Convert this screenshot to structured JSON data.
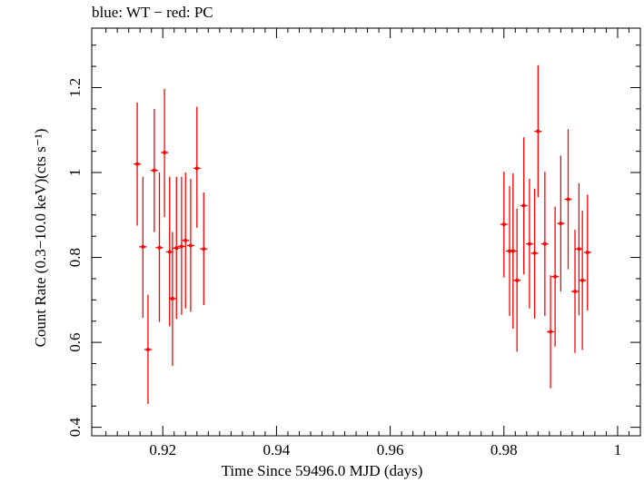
{
  "chart_data": {
    "type": "scatter",
    "title": "blue: WT − red: PC",
    "xlabel": "Time Since 59496.0 MJD (days)",
    "ylabel": "Count Rate (0.3−10.0 keV)(cts s⁻¹)",
    "xlim": [
      0.9075,
      1.004
    ],
    "ylim": [
      0.38,
      1.34
    ],
    "xticks": [
      0.92,
      0.94,
      0.96,
      0.98,
      1.0
    ],
    "xtick_labels": [
      "0.92",
      "0.94",
      "0.96",
      "0.98",
      "1"
    ],
    "yticks": [
      0.4,
      0.6,
      0.8,
      1.0,
      1.2
    ],
    "ytick_labels": [
      "0.4",
      "0.6",
      "0.8",
      "1",
      "1.2"
    ],
    "grid": false,
    "colors": {
      "PC": "#ff0000",
      "axes": "#000000"
    },
    "series": [
      {
        "name": "PC",
        "color": "#ff0000",
        "points": [
          {
            "x": 0.9155,
            "y": 1.02,
            "ylo": 0.875,
            "yhi": 1.165
          },
          {
            "x": 0.9165,
            "y": 0.825,
            "ylo": 0.658,
            "yhi": 0.99
          },
          {
            "x": 0.9174,
            "y": 0.583,
            "ylo": 0.455,
            "yhi": 0.712
          },
          {
            "x": 0.9185,
            "y": 1.005,
            "ylo": 0.86,
            "yhi": 1.15
          },
          {
            "x": 0.9194,
            "y": 0.823,
            "ylo": 0.648,
            "yhi": 1.0
          },
          {
            "x": 0.9203,
            "y": 1.047,
            "ylo": 0.895,
            "yhi": 1.197
          },
          {
            "x": 0.9212,
            "y": 0.813,
            "ylo": 0.638,
            "yhi": 0.99
          },
          {
            "x": 0.9217,
            "y": 0.703,
            "ylo": 0.545,
            "yhi": 0.86
          },
          {
            "x": 0.9224,
            "y": 0.822,
            "ylo": 0.655,
            "yhi": 0.99
          },
          {
            "x": 0.9233,
            "y": 0.826,
            "ylo": 0.665,
            "yhi": 0.99
          },
          {
            "x": 0.924,
            "y": 0.84,
            "ylo": 0.68,
            "yhi": 1.0
          },
          {
            "x": 0.9249,
            "y": 0.828,
            "ylo": 0.672,
            "yhi": 0.985
          },
          {
            "x": 0.926,
            "y": 1.01,
            "ylo": 0.87,
            "yhi": 1.155
          },
          {
            "x": 0.9272,
            "y": 0.82,
            "ylo": 0.688,
            "yhi": 0.953
          },
          {
            "x": 0.98,
            "y": 0.878,
            "ylo": 0.753,
            "yhi": 1.002
          },
          {
            "x": 0.981,
            "y": 0.815,
            "ylo": 0.662,
            "yhi": 0.968
          },
          {
            "x": 0.9816,
            "y": 0.815,
            "ylo": 0.632,
            "yhi": 0.998
          },
          {
            "x": 0.9823,
            "y": 0.746,
            "ylo": 0.578,
            "yhi": 0.915
          },
          {
            "x": 0.9835,
            "y": 0.922,
            "ylo": 0.76,
            "yhi": 1.083
          },
          {
            "x": 0.9845,
            "y": 0.832,
            "ylo": 0.68,
            "yhi": 0.985
          },
          {
            "x": 0.9854,
            "y": 0.81,
            "ylo": 0.656,
            "yhi": 0.962
          },
          {
            "x": 0.986,
            "y": 1.097,
            "ylo": 0.942,
            "yhi": 1.253
          },
          {
            "x": 0.9872,
            "y": 0.832,
            "ylo": 0.662,
            "yhi": 1.002
          },
          {
            "x": 0.9882,
            "y": 0.625,
            "ylo": 0.492,
            "yhi": 0.758
          },
          {
            "x": 0.989,
            "y": 0.755,
            "ylo": 0.59,
            "yhi": 0.92
          },
          {
            "x": 0.99,
            "y": 0.88,
            "ylo": 0.72,
            "yhi": 1.04
          },
          {
            "x": 0.9913,
            "y": 0.937,
            "ylo": 0.772,
            "yhi": 1.102
          },
          {
            "x": 0.9925,
            "y": 0.72,
            "ylo": 0.575,
            "yhi": 0.865
          },
          {
            "x": 0.9932,
            "y": 0.82,
            "ylo": 0.664,
            "yhi": 0.975
          },
          {
            "x": 0.9938,
            "y": 0.746,
            "ylo": 0.582,
            "yhi": 0.91
          },
          {
            "x": 0.9947,
            "y": 0.812,
            "ylo": 0.675,
            "yhi": 0.948
          }
        ]
      }
    ]
  }
}
